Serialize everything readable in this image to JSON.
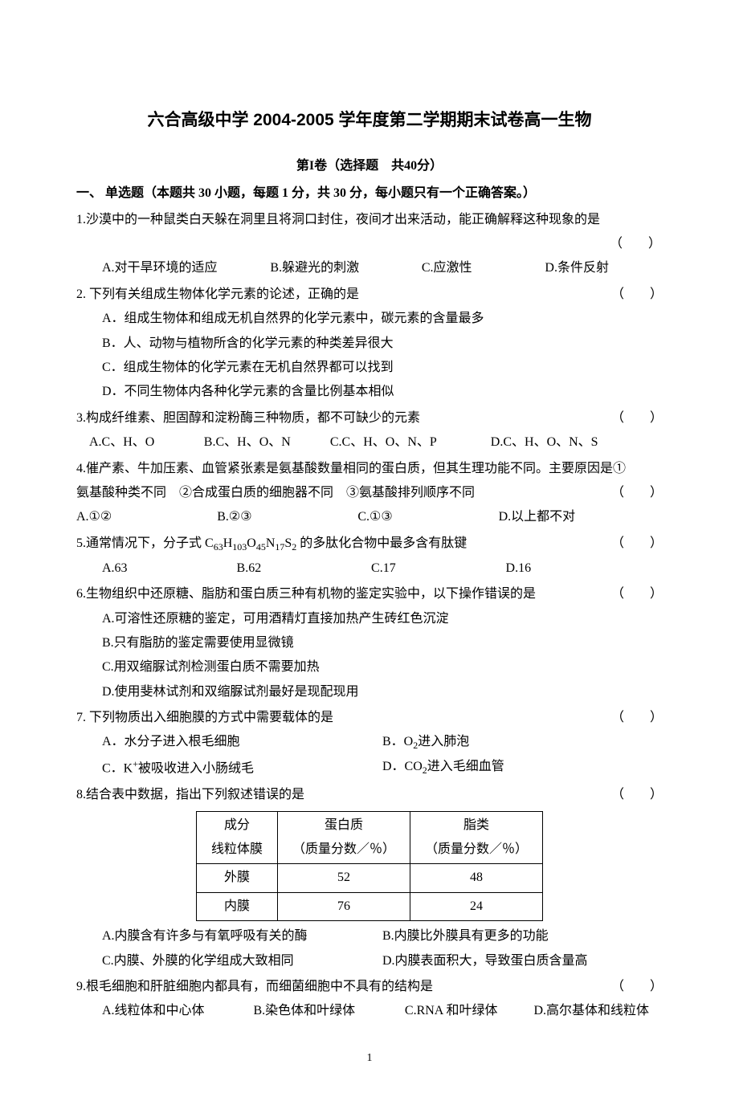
{
  "title": "六合高级中学 2004-2005 学年度第二学期期末试卷高一生物",
  "section_header": "第I卷（选择题　共40分）",
  "instruction": "一、 单选题（本题共 30 小题，每题 1 分，共 30 分，每小题只有一个正确答案。）",
  "paren": "（　　）",
  "q1": {
    "num": "1.",
    "stem": "沙漠中的一种鼠类白天躲在洞里且将洞口封住，夜间才出来活动，能正确解释这种现象的是",
    "A": "A.对干旱环境的适应",
    "B": "B.躲避光的刺激",
    "C": "C.应激性",
    "D": "D.条件反射"
  },
  "q2": {
    "num": "2.",
    "stem": " 下列有关组成生物体化学元素的论述，正确的是",
    "A": "A．组成生物体和组成无机自然界的化学元素中，碳元素的含量最多",
    "B": "B．人、动物与植物所含的化学元素的种类差异很大",
    "C": "C．组成生物体的化学元素在无机自然界都可以找到",
    "D": "D．不同生物体内各种化学元素的含量比例基本相似"
  },
  "q3": {
    "num": "3.",
    "stem": "构成纤维素、胆固醇和淀粉酶三种物质，都不可缺少的元素",
    "A": "A.C、H、O",
    "B": "B.C、H、O、N",
    "C": "C.C、H、O、N、P",
    "D": "D.C、H、O、N、S"
  },
  "q4": {
    "num": "4.",
    "stem1": "催产素、牛加压素、血管紧张素是氨基酸数量相同的蛋白质，但其生理功能不同。主要原因是①",
    "stem2": "氨基酸种类不同　②合成蛋白质的细胞器不同　③氨基酸排列顺序不同",
    "A": "A.①②",
    "B": "B.②③",
    "C": "C.①③",
    "D": "D.以上都不对"
  },
  "q5": {
    "num": "5.",
    "stem_pre": "通常情况下，分子式 C",
    "s63": "63",
    "H": "H",
    "s103": "103",
    "O": "O",
    "s45": "45",
    "N": "N",
    "s17": "17",
    "S": "S",
    "s2": "2",
    "stem_post": " 的多肽化合物中最多含有肽键",
    "A": "A.63",
    "B": "B.62",
    "C": "C.17",
    "D": "D.16"
  },
  "q6": {
    "num": "6.",
    "stem": "生物组织中还原糖、脂肪和蛋白质三种有机物的鉴定实验中，以下操作错误的是",
    "A": "A.可溶性还原糖的鉴定，可用酒精灯直接加热产生砖红色沉淀",
    "B": "B.只有脂肪的鉴定需要使用显微镜",
    "C": "C.用双缩脲试剂检测蛋白质不需要加热",
    "D": "D.使用斐林试剂和双缩脲试剂最好是现配现用"
  },
  "q7": {
    "num": "7.",
    "stem": " 下列物质出入细胞膜的方式中需要载体的是",
    "A": "A．水分子进入根毛细胞",
    "B_pre": "B．O",
    "B_sub": "2",
    "B_post": "进入肺泡",
    "C_pre": "C．K",
    "C_sup": "+",
    "C_post": "被吸收进入小肠绒毛",
    "D_pre": "D．CO",
    "D_sub": "2",
    "D_post": "进入毛细血管"
  },
  "q8": {
    "num": "8.",
    "stem": "结合表中数据，指出下列叙述错误的是",
    "table": {
      "h1a": "成分",
      "h1b": "线粒体膜",
      "h2a": "蛋白质",
      "h2b": "（质量分数／％）",
      "h3a": "脂类",
      "h3b": "（质量分数／％）",
      "r1c1": "外膜",
      "r1c2": "52",
      "r1c3": "48",
      "r2c1": "内膜",
      "r2c2": "76",
      "r2c3": "24"
    },
    "A": "A.内膜含有许多与有氧呼吸有关的酶",
    "B": "B.内膜比外膜具有更多的功能",
    "C": "C.内膜、外膜的化学组成大致相同",
    "D": "D.内膜表面积大，导致蛋白质含量高"
  },
  "q9": {
    "num": "9.",
    "stem": "根毛细胞和肝脏细胞内都具有，而细菌细胞中不具有的结构是",
    "A": "A.线粒体和中心体",
    "B": "B.染色体和叶绿体",
    "C": "C.RNA 和叶绿体",
    "D": "D.高尔基体和线粒体"
  },
  "page_number": "1"
}
